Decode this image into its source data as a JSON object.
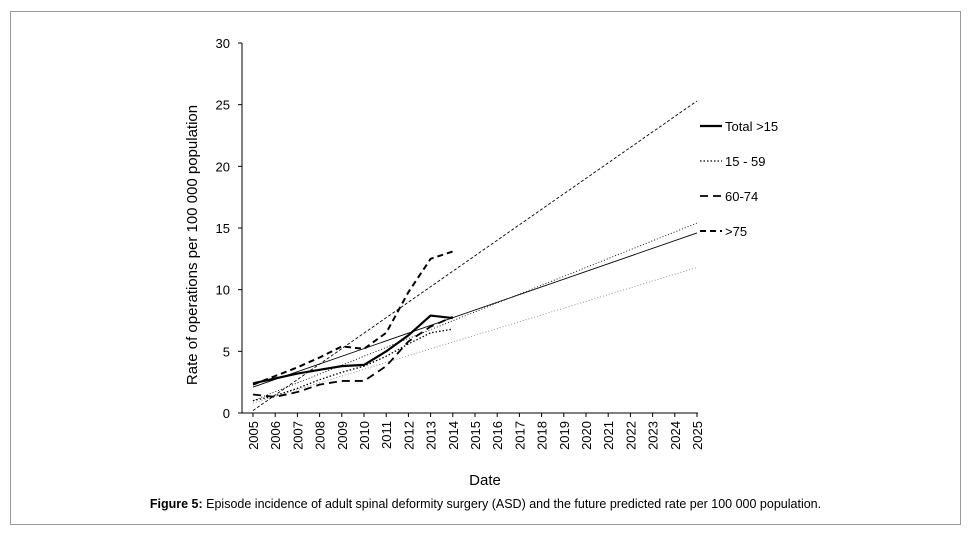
{
  "caption": {
    "label": "Figure 5:",
    "text": " Episode incidence of adult spinal deformity surgery (ASD) and the future predicted rate per 100 000 population."
  },
  "chart_data": {
    "type": "line",
    "xlabel": "Date",
    "ylabel": "Rate of operations per 100 000 population",
    "x": [
      2005,
      2006,
      2007,
      2008,
      2009,
      2010,
      2011,
      2012,
      2013,
      2014,
      2015,
      2016,
      2017,
      2018,
      2019,
      2020,
      2021,
      2022,
      2023,
      2024,
      2025
    ],
    "ylim": [
      0,
      30
    ],
    "yticks": [
      0,
      5,
      10,
      15,
      20,
      25,
      30
    ],
    "grid": false,
    "legend_position": "right",
    "series": [
      {
        "name": "Total >15",
        "style": "solid",
        "x": [
          2005,
          2006,
          2007,
          2008,
          2009,
          2010,
          2011,
          2012,
          2013,
          2014
        ],
        "values": [
          2.4,
          2.8,
          3.2,
          3.5,
          3.8,
          3.9,
          5.0,
          6.3,
          7.9,
          7.7
        ]
      },
      {
        "name": "15 - 59",
        "style": "dotted",
        "x": [
          2005,
          2006,
          2007,
          2008,
          2009,
          2010,
          2011,
          2012,
          2013,
          2014
        ],
        "values": [
          1.0,
          1.4,
          2.0,
          2.7,
          3.3,
          3.8,
          4.6,
          5.6,
          6.5,
          6.8
        ]
      },
      {
        "name": "60-74",
        "style": "dashed",
        "x": [
          2005,
          2006,
          2007,
          2008,
          2009,
          2010,
          2011,
          2012,
          2013,
          2014
        ],
        "values": [
          1.5,
          1.3,
          1.7,
          2.3,
          2.6,
          2.6,
          3.8,
          5.8,
          7.0,
          7.8
        ]
      },
      {
        "name": ">75",
        "style": "long-dashed",
        "x": [
          2005,
          2006,
          2007,
          2008,
          2009,
          2010,
          2011,
          2012,
          2013,
          2014
        ],
        "values": [
          2.3,
          3.0,
          3.7,
          4.5,
          5.4,
          5.2,
          6.5,
          9.8,
          12.5,
          13.1
        ]
      }
    ],
    "trendlines": [
      {
        "series": "Total >15",
        "style": "thin-solid",
        "x": [
          2005,
          2025
        ],
        "values": [
          2.1,
          14.6
        ]
      },
      {
        "series": "15 - 59",
        "style": "thin-dotted",
        "x": [
          2005,
          2025
        ],
        "values": [
          0.8,
          11.8
        ]
      },
      {
        "series": "60-74",
        "style": "thin-dotted",
        "x": [
          2005,
          2025
        ],
        "values": [
          1.0,
          15.4
        ]
      },
      {
        "series": ">75",
        "style": "thin-dashed",
        "x": [
          2005,
          2025
        ],
        "values": [
          0.2,
          25.3
        ]
      }
    ]
  }
}
